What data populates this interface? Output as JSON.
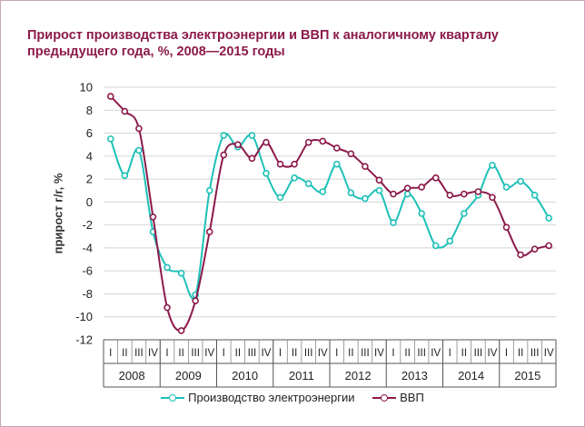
{
  "chart_data": {
    "type": "line",
    "title": "Прирост производства электроэнергии и ВВП к аналогичному кварталу предыдущего года, %, 2008—2015 годы",
    "ylabel": "прирост г/г, %",
    "ylim": [
      -12,
      10
    ],
    "yticks": [
      10,
      8,
      6,
      4,
      2,
      0,
      -2,
      -4,
      -6,
      -8,
      -10,
      -12
    ],
    "quarters": [
      "I",
      "II",
      "III",
      "IV"
    ],
    "years": [
      "2008",
      "2009",
      "2010",
      "2011",
      "2012",
      "2013",
      "2014",
      "2015"
    ],
    "grid": true,
    "legend_position": "bottom",
    "series": [
      {
        "name": "Производство электроэнергии",
        "color": "#1ec0b8",
        "values": [
          5.5,
          2.3,
          4.5,
          -2.6,
          -5.7,
          -6.2,
          -8.1,
          1.0,
          5.8,
          4.8,
          5.8,
          2.5,
          0.4,
          2.1,
          1.6,
          0.9,
          3.3,
          0.8,
          0.3,
          1.0,
          -1.8,
          0.7,
          -1.0,
          -3.8,
          -3.4,
          -1.0,
          0.6,
          3.2,
          1.3,
          1.8,
          0.6,
          -1.4
        ]
      },
      {
        "name": "ВВП",
        "color": "#8b1a4a",
        "values": [
          9.2,
          7.9,
          6.4,
          -1.3,
          -9.2,
          -11.2,
          -8.6,
          -2.6,
          4.1,
          5.0,
          3.8,
          5.2,
          3.3,
          3.3,
          5.2,
          5.3,
          4.7,
          4.2,
          3.1,
          1.9,
          0.7,
          1.2,
          1.3,
          2.1,
          0.6,
          0.7,
          0.9,
          0.4,
          -2.2,
          -4.6,
          -4.1,
          -3.8
        ]
      }
    ]
  }
}
